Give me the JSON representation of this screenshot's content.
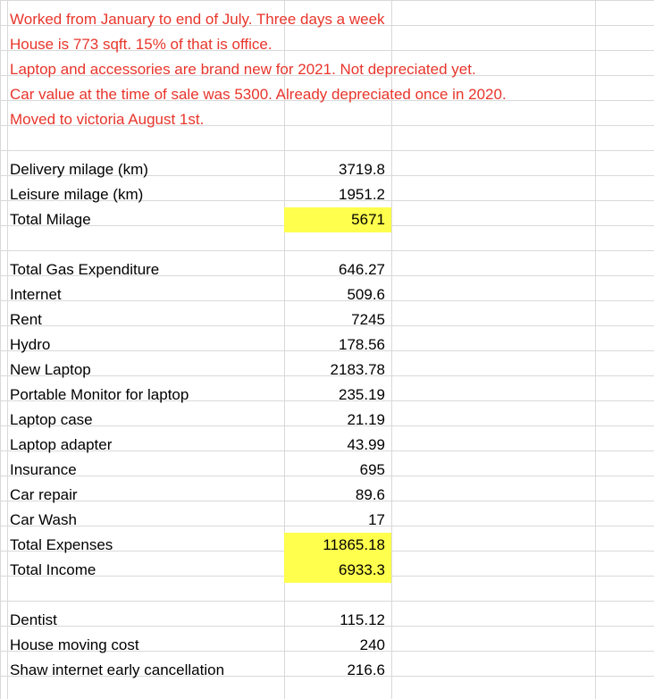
{
  "notes": [
    "Worked from January to end of July. Three days a week",
    "House is 773 sqft. 15% of that is office.",
    "Laptop and accessories are brand new for 2021. Not depreciated yet.",
    "Car value at the time of sale was 5300. Already depreciated once in 2020.",
    "Moved to victoria August 1st."
  ],
  "mileage": [
    {
      "label": "Delivery milage (km)",
      "value": "3719.8"
    },
    {
      "label": "Leisure milage (km)",
      "value": "1951.2"
    },
    {
      "label": "Total Milage",
      "value": "5671"
    }
  ],
  "expenses": [
    {
      "label": "Total Gas Expenditure",
      "value": "646.27"
    },
    {
      "label": "Internet",
      "value": "509.6"
    },
    {
      "label": "Rent",
      "value": "7245"
    },
    {
      "label": "Hydro",
      "value": "178.56"
    },
    {
      "label": "New Laptop",
      "value": "2183.78"
    },
    {
      "label": "Portable Monitor for laptop",
      "value": "235.19"
    },
    {
      "label": "Laptop case",
      "value": "21.19"
    },
    {
      "label": "Laptop adapter",
      "value": "43.99"
    },
    {
      "label": "Insurance",
      "value": "695"
    },
    {
      "label": "Car repair",
      "value": "89.6"
    },
    {
      "label": "Car Wash",
      "value": "17"
    },
    {
      "label": "Total Expenses",
      "value": "11865.18"
    },
    {
      "label": "Total Income",
      "value": "6933.3"
    }
  ],
  "other": [
    {
      "label": "Dentist",
      "value": "115.12"
    },
    {
      "label": "House moving cost",
      "value": "240"
    },
    {
      "label": "Shaw internet early cancellation",
      "value": "216.6"
    }
  ],
  "colors": {
    "note_text": "#e8352b",
    "highlight": "#ffff4d",
    "gridline": "#d9d9d9"
  }
}
